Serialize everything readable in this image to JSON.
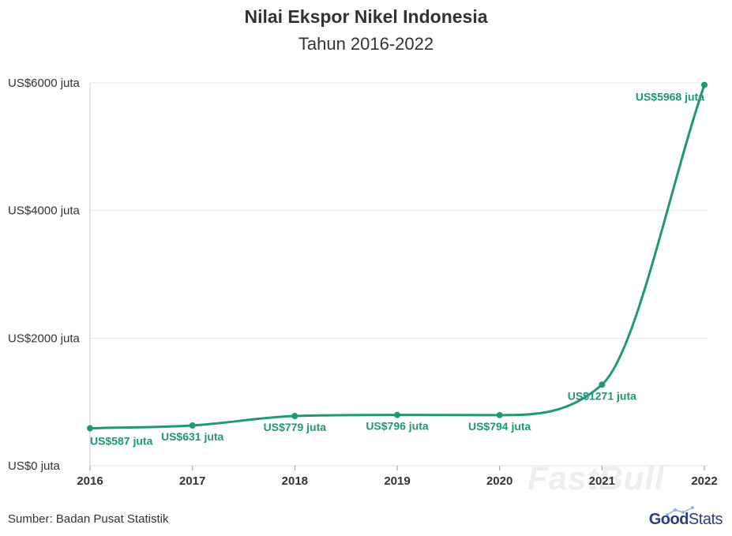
{
  "chart_data": {
    "type": "line",
    "title": "Nilai Ekspor Nikel Indonesia",
    "subtitle": "Tahun 2016-2022",
    "xlabel": "",
    "ylabel": "",
    "categories": [
      "2016",
      "2017",
      "2018",
      "2019",
      "2020",
      "2021",
      "2022"
    ],
    "series": [
      {
        "values": [
          587,
          631,
          779,
          796,
          794,
          1271,
          5968
        ],
        "data_labels": [
          "US$587 juta",
          "US$631 juta",
          "US$779 juta",
          "US$796 juta",
          "US$794 juta",
          "US$1271 juta",
          "US$5968 juta"
        ],
        "color": "#1f9876"
      }
    ],
    "ylim": [
      0,
      6000
    ],
    "yticks": [
      0,
      2000,
      4000,
      6000
    ],
    "ytick_labels": [
      "US$0 juta",
      "US$2000 juta",
      "US$4000 juta",
      "US$6000 juta"
    ],
    "grid": true,
    "legend": "none"
  },
  "footer": {
    "source": "Sumber: Badan Pusat Statistik",
    "brand_good": "Good",
    "brand_stats": "Stats",
    "watermark": "FastBull"
  },
  "colors": {
    "line": "#1f9876",
    "grid": "#e6e6e6",
    "axis_text": "#333333",
    "brand": "#2b3b8f"
  }
}
